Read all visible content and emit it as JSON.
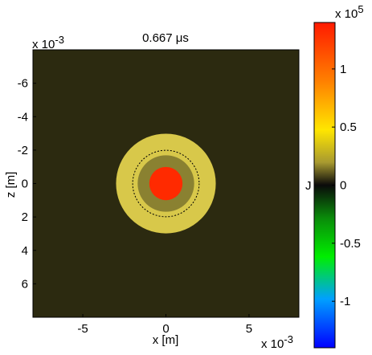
{
  "chart_data": {
    "type": "heatmap",
    "title": "0.667 μs",
    "xlabel": "x [m]",
    "ylabel": "z [m]",
    "x_multiplier": "x 10",
    "x_exponent": "-3",
    "y_multiplier": "x 10",
    "y_exponent": "-3",
    "xlim": [
      -8,
      8
    ],
    "ylim": [
      -8,
      8
    ],
    "y_reversed": true,
    "x_ticks": [
      -5,
      0,
      5
    ],
    "x_tick_labels": [
      "-5",
      "0",
      "5"
    ],
    "y_ticks": [
      -6,
      -4,
      -2,
      0,
      2,
      4,
      6
    ],
    "y_tick_labels": [
      "-6",
      "-4",
      "-2",
      "0",
      "2",
      "4",
      "6"
    ],
    "background_value": 0.05,
    "features": [
      {
        "name": "core",
        "radius": 1.0,
        "value": 1.35
      },
      {
        "name": "ring",
        "inner_radius": 1.0,
        "outer_radius": 3.0,
        "value": 0.45
      },
      {
        "name": "dashed-contour",
        "radius": 2.0
      }
    ],
    "colorbar": {
      "label": "J",
      "multiplier": "x 10",
      "exponent": "5",
      "range": [
        -1.4,
        1.4
      ],
      "ticks": [
        1,
        0.5,
        0,
        -0.5,
        -1
      ],
      "tick_labels": [
        "1",
        "0.5",
        "0",
        "-0.5",
        "-1"
      ]
    }
  }
}
